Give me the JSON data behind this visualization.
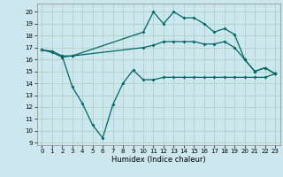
{
  "title": "",
  "xlabel": "Humidex (Indice chaleur)",
  "background_color": "#cce8ee",
  "grid_color": "#aaccbb",
  "line_color": "#006666",
  "xlim": [
    -0.5,
    23.5
  ],
  "ylim": [
    8.8,
    20.7
  ],
  "yticks": [
    9,
    10,
    11,
    12,
    13,
    14,
    15,
    16,
    17,
    18,
    19,
    20
  ],
  "xticks": [
    0,
    1,
    2,
    3,
    4,
    5,
    6,
    7,
    8,
    9,
    10,
    11,
    12,
    13,
    14,
    15,
    16,
    17,
    18,
    19,
    20,
    21,
    22,
    23
  ],
  "line1_x": [
    0,
    1,
    2,
    3,
    10,
    11,
    12,
    13,
    14,
    15,
    16,
    17,
    18,
    19,
    20,
    21,
    22,
    23
  ],
  "line1_y": [
    16.8,
    16.7,
    16.3,
    16.3,
    17.0,
    17.2,
    17.5,
    17.5,
    17.5,
    17.5,
    17.3,
    17.3,
    17.5,
    17.0,
    16.0,
    15.0,
    15.3,
    14.8
  ],
  "line2_x": [
    0,
    1,
    2,
    3,
    10,
    11,
    12,
    13,
    14,
    15,
    16,
    17,
    18,
    19,
    20,
    21,
    22,
    23
  ],
  "line2_y": [
    16.8,
    16.6,
    16.2,
    16.3,
    18.3,
    20.0,
    19.0,
    20.0,
    19.5,
    19.5,
    19.0,
    18.3,
    18.6,
    18.1,
    16.0,
    15.0,
    15.3,
    14.8
  ],
  "line3_x": [
    2,
    3,
    4,
    5,
    6,
    7,
    8,
    9,
    10,
    11,
    12,
    13,
    14,
    15,
    16,
    17,
    18,
    19,
    20,
    21,
    22,
    23
  ],
  "line3_y": [
    16.3,
    13.7,
    12.3,
    10.5,
    9.4,
    12.2,
    14.0,
    15.1,
    14.3,
    14.3,
    14.5,
    14.5,
    14.5,
    14.5,
    14.5,
    14.5,
    14.5,
    14.5,
    14.5,
    14.5,
    14.5,
    14.8
  ],
  "xlabel_fontsize": 6,
  "tick_labelsize": 5,
  "marker_size": 2.0,
  "linewidth": 0.9
}
